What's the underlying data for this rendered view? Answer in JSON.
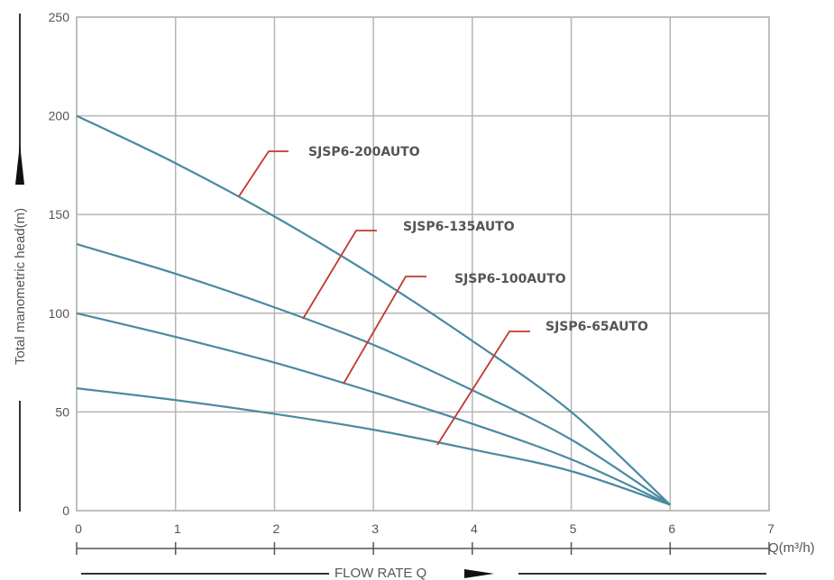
{
  "chart_data": {
    "type": "line",
    "xlabel": "FLOW RATE Q",
    "ylabel": "Total manometric head(m)",
    "x_unit_label": "Q(m³/h)",
    "xlim": [
      0,
      7
    ],
    "ylim": [
      0,
      250
    ],
    "x_ticks": [
      "0",
      "1",
      "2",
      "3",
      "4",
      "5",
      "6",
      "7"
    ],
    "y_ticks": [
      "0",
      "50",
      "100",
      "150",
      "200",
      "250"
    ],
    "grid": true,
    "colors": {
      "curve": "#4a8aa0",
      "leader": "#c0392b",
      "grid": "#b5b5b5",
      "text": "#555555"
    },
    "series": [
      {
        "name": "SJSP6-200AUTO",
        "x": [
          0,
          1,
          2,
          3,
          4,
          5,
          6
        ],
        "y": [
          200,
          176,
          149,
          119,
          86,
          50,
          3
        ]
      },
      {
        "name": "SJSP6-135AUTO",
        "x": [
          0,
          1,
          2,
          3,
          4,
          5,
          6
        ],
        "y": [
          135,
          120,
          103,
          84,
          61,
          36,
          3
        ]
      },
      {
        "name": "SJSP6-100AUTO",
        "x": [
          0,
          1,
          2,
          3,
          4,
          5,
          6
        ],
        "y": [
          100,
          88,
          75,
          60,
          44,
          26,
          3
        ]
      },
      {
        "name": "SJSP6-65AUTO",
        "x": [
          0,
          1,
          2,
          3,
          4,
          5,
          6
        ],
        "y": [
          62,
          56,
          49,
          41,
          31,
          20,
          3
        ]
      }
    ]
  }
}
